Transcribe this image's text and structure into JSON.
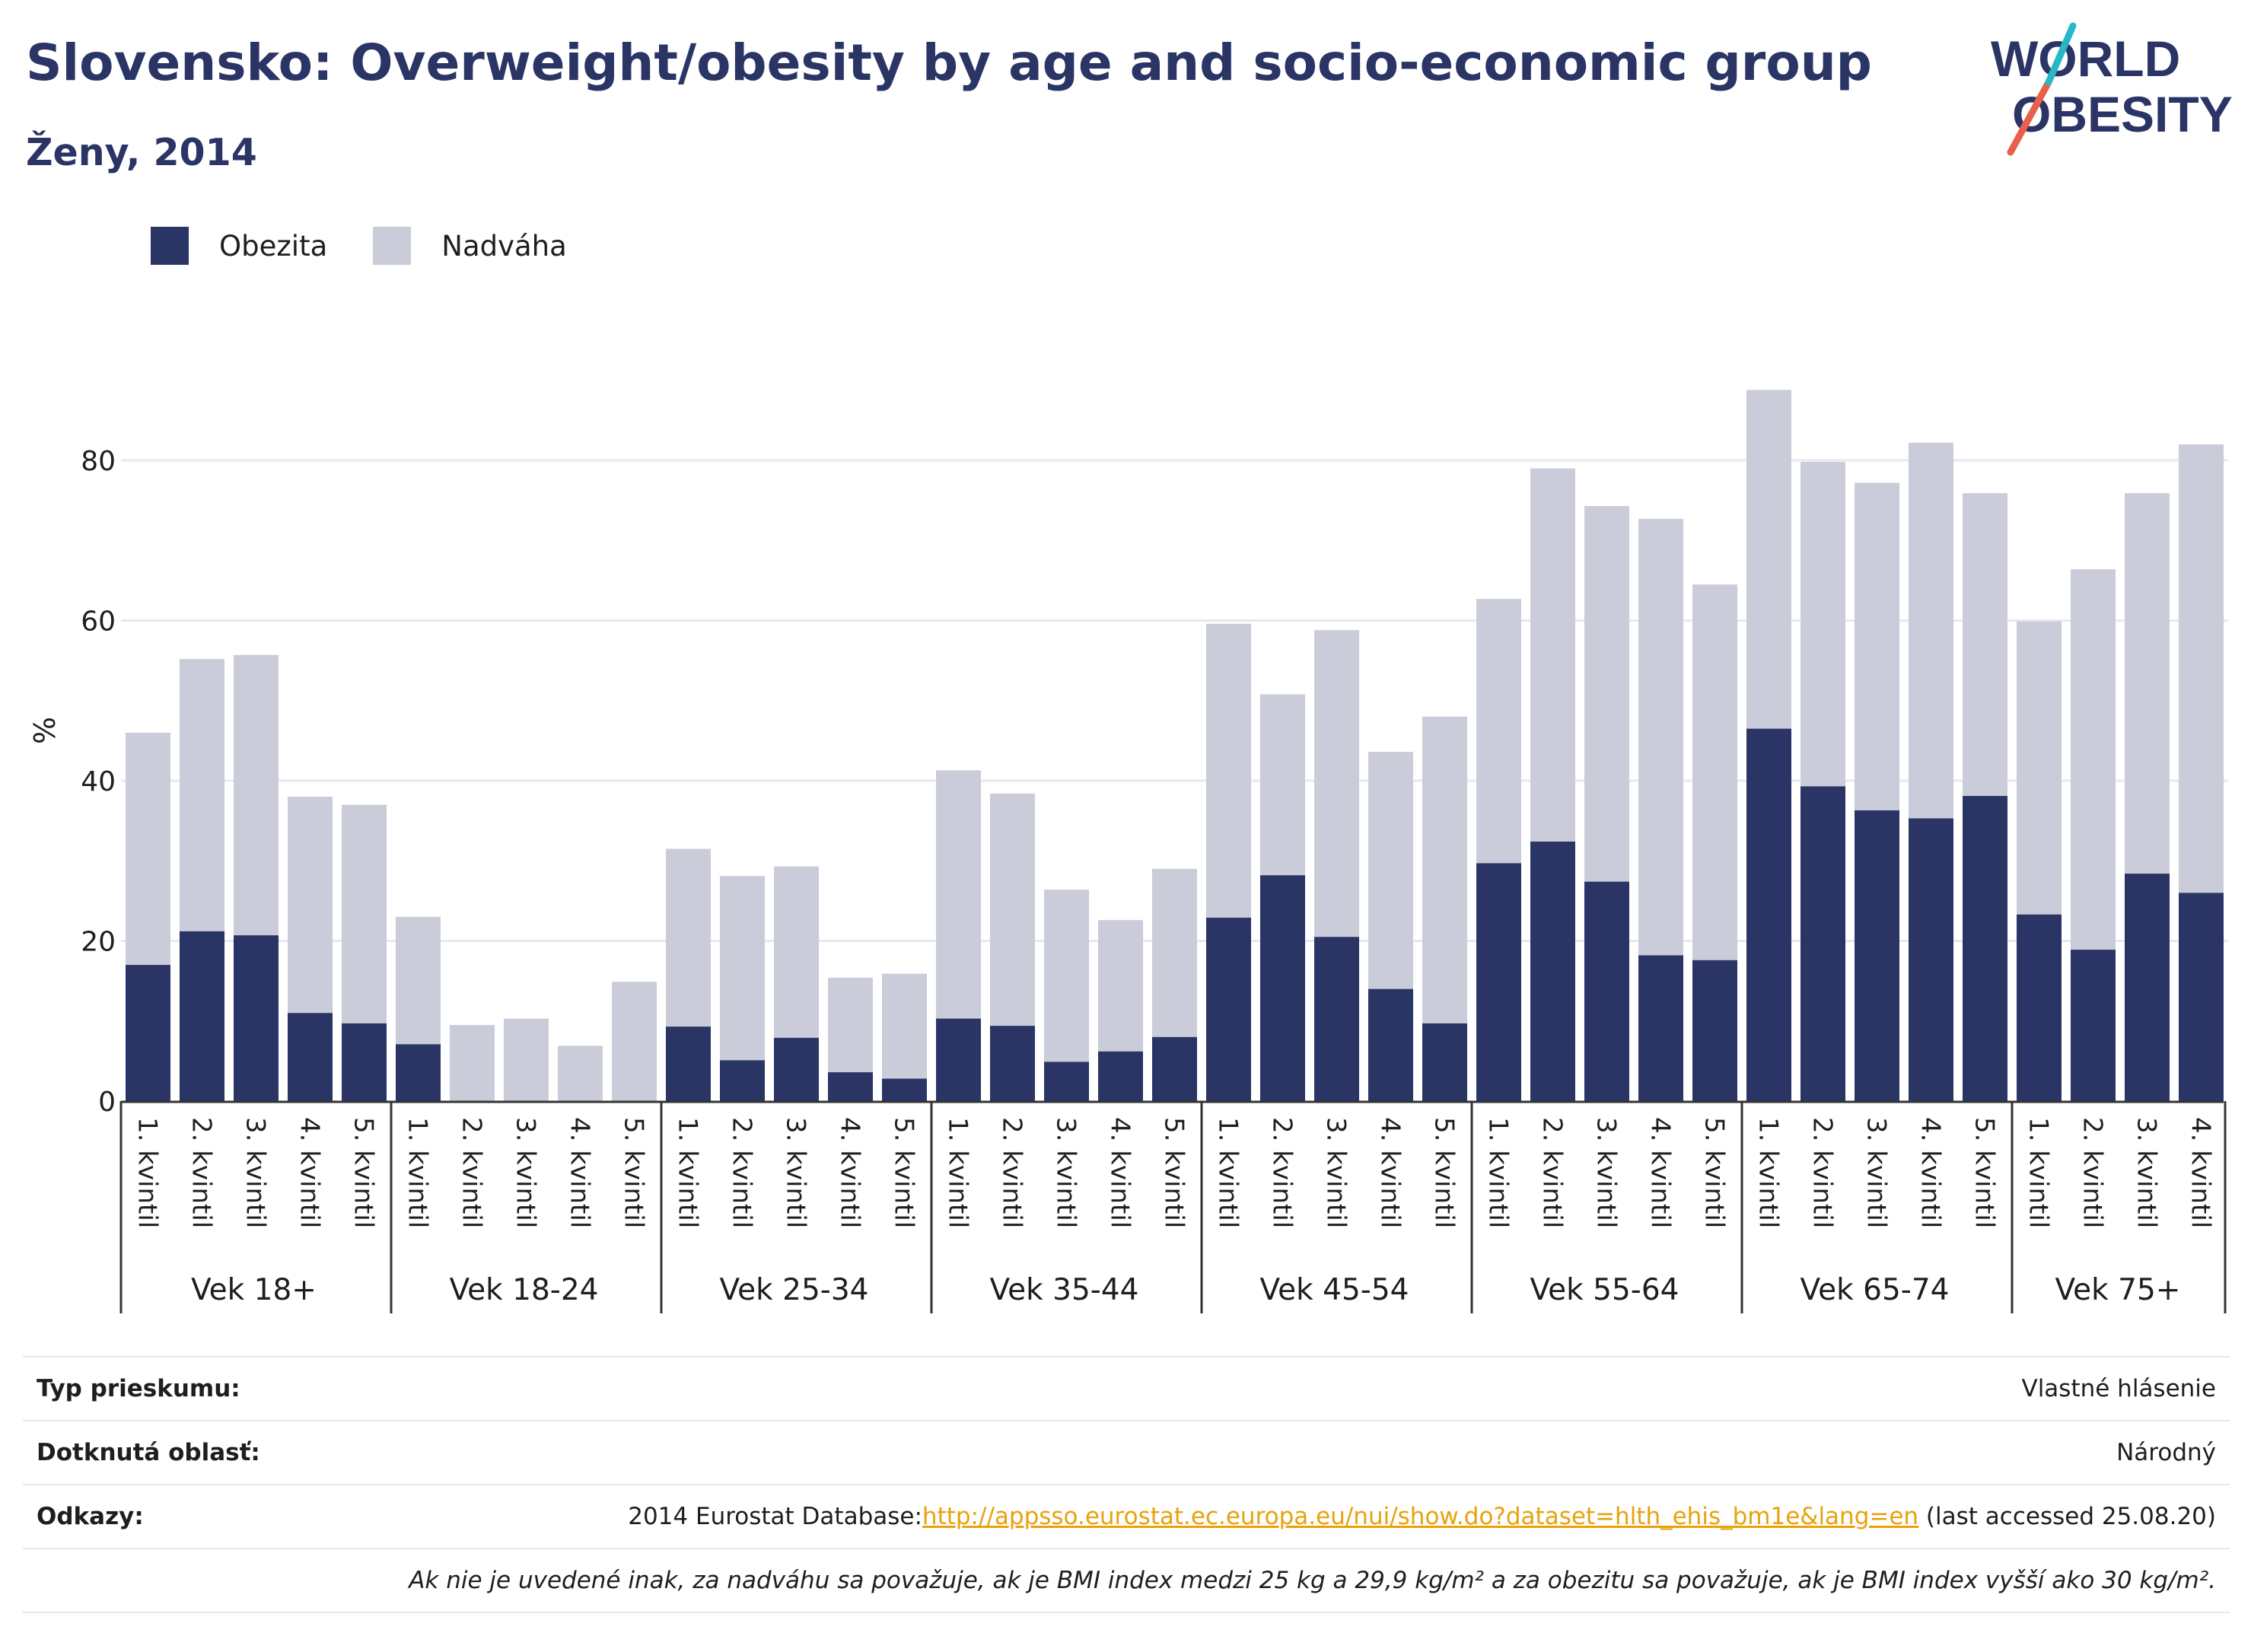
{
  "header": {
    "title": "Slovensko: Overweight/obesity by age and socio-economic group",
    "subtitle": "Ženy, 2014"
  },
  "logo": {
    "line1": "WORLD",
    "line2": "OBESITY",
    "icon": "world-obesity-logo"
  },
  "colors": {
    "obesity": "#2a3566",
    "overweight": "#cbccd9",
    "title": "#2a3566",
    "link": "#e8a20c",
    "logo_teal": "#27b8c8",
    "logo_red": "#e8604c"
  },
  "chart_data": {
    "type": "bar",
    "stacked": true,
    "ylabel": "%",
    "ylim": [
      0,
      90
    ],
    "yticks": [
      0,
      20,
      40,
      60,
      80
    ],
    "grid": true,
    "legend": {
      "position": "top-left",
      "entries": [
        "Obezita",
        "Nadváha"
      ]
    },
    "groups": [
      {
        "label": "Vek 18+",
        "categories": [
          "1. kvintil",
          "2. kvintil",
          "3. kvintil",
          "4. kvintil",
          "5. kvintil"
        ]
      },
      {
        "label": "Vek 18-24",
        "categories": [
          "1. kvintil",
          "2. kvintil",
          "3. kvintil",
          "4. kvintil",
          "5. kvintil"
        ]
      },
      {
        "label": "Vek 25-34",
        "categories": [
          "1. kvintil",
          "2. kvintil",
          "3. kvintil",
          "4. kvintil",
          "5. kvintil"
        ]
      },
      {
        "label": "Vek 35-44",
        "categories": [
          "1. kvintil",
          "2. kvintil",
          "3. kvintil",
          "4. kvintil",
          "5. kvintil"
        ]
      },
      {
        "label": "Vek 45-54",
        "categories": [
          "1. kvintil",
          "2. kvintil",
          "3. kvintil",
          "4. kvintil",
          "5. kvintil"
        ]
      },
      {
        "label": "Vek 55-64",
        "categories": [
          "1. kvintil",
          "2. kvintil",
          "3. kvintil",
          "4. kvintil",
          "5. kvintil"
        ]
      },
      {
        "label": "Vek 65-74",
        "categories": [
          "1. kvintil",
          "2. kvintil",
          "3. kvintil",
          "4. kvintil",
          "5. kvintil"
        ]
      },
      {
        "label": "Vek 75+",
        "categories": [
          "1. kvintil",
          "2. kvintil",
          "3. kvintil",
          "4. kvintil"
        ]
      }
    ],
    "series": [
      {
        "name": "Obezita",
        "values": [
          [
            17.0,
            21.2,
            20.7,
            11.0,
            9.7
          ],
          [
            7.1,
            0,
            0,
            0,
            0
          ],
          [
            9.3,
            5.1,
            7.9,
            3.6,
            2.8
          ],
          [
            10.3,
            9.4,
            4.9,
            6.2,
            8.0
          ],
          [
            22.9,
            28.2,
            20.5,
            14.0,
            9.7
          ],
          [
            29.7,
            32.4,
            27.4,
            18.2,
            17.6
          ],
          [
            46.5,
            39.3,
            36.3,
            35.3,
            38.1
          ],
          [
            23.3,
            18.9,
            28.4,
            26.0
          ]
        ]
      },
      {
        "name": "Nadváha",
        "values": [
          [
            29.0,
            34.0,
            35.0,
            27.0,
            27.3
          ],
          [
            15.9,
            9.5,
            10.3,
            6.9,
            14.9
          ],
          [
            22.2,
            23.0,
            21.4,
            11.8,
            13.1
          ],
          [
            31.0,
            29.0,
            21.5,
            16.4,
            21.0
          ],
          [
            36.7,
            22.6,
            38.3,
            29.6,
            38.3
          ],
          [
            33.0,
            46.6,
            46.9,
            54.5,
            46.9
          ],
          [
            42.3,
            40.5,
            40.9,
            46.9,
            37.8
          ],
          [
            36.6,
            47.5,
            47.5,
            56.0
          ]
        ]
      }
    ]
  },
  "info": {
    "survey_key": "Typ prieskumu:",
    "survey_value": "Vlastné hlásenie",
    "area_key": "Dotknutá oblasť:",
    "area_value": "Národný",
    "refs_key": "Odkazy:",
    "refs_prefix": "2014 Eurostat Database:",
    "refs_link": "http://appsso.eurostat.ec.europa.eu/nui/show.do?dataset=hlth_ehis_bm1e&lang=en",
    "refs_suffix": " (last accessed 25.08.20)",
    "note": "Ak nie je uvedené inak, za nadváhu sa považuje, ak je BMI index medzi 25 kg a 29,9 kg/m² a za obezitu sa považuje, ak je BMI index vyšší ako 30 kg/m²."
  }
}
